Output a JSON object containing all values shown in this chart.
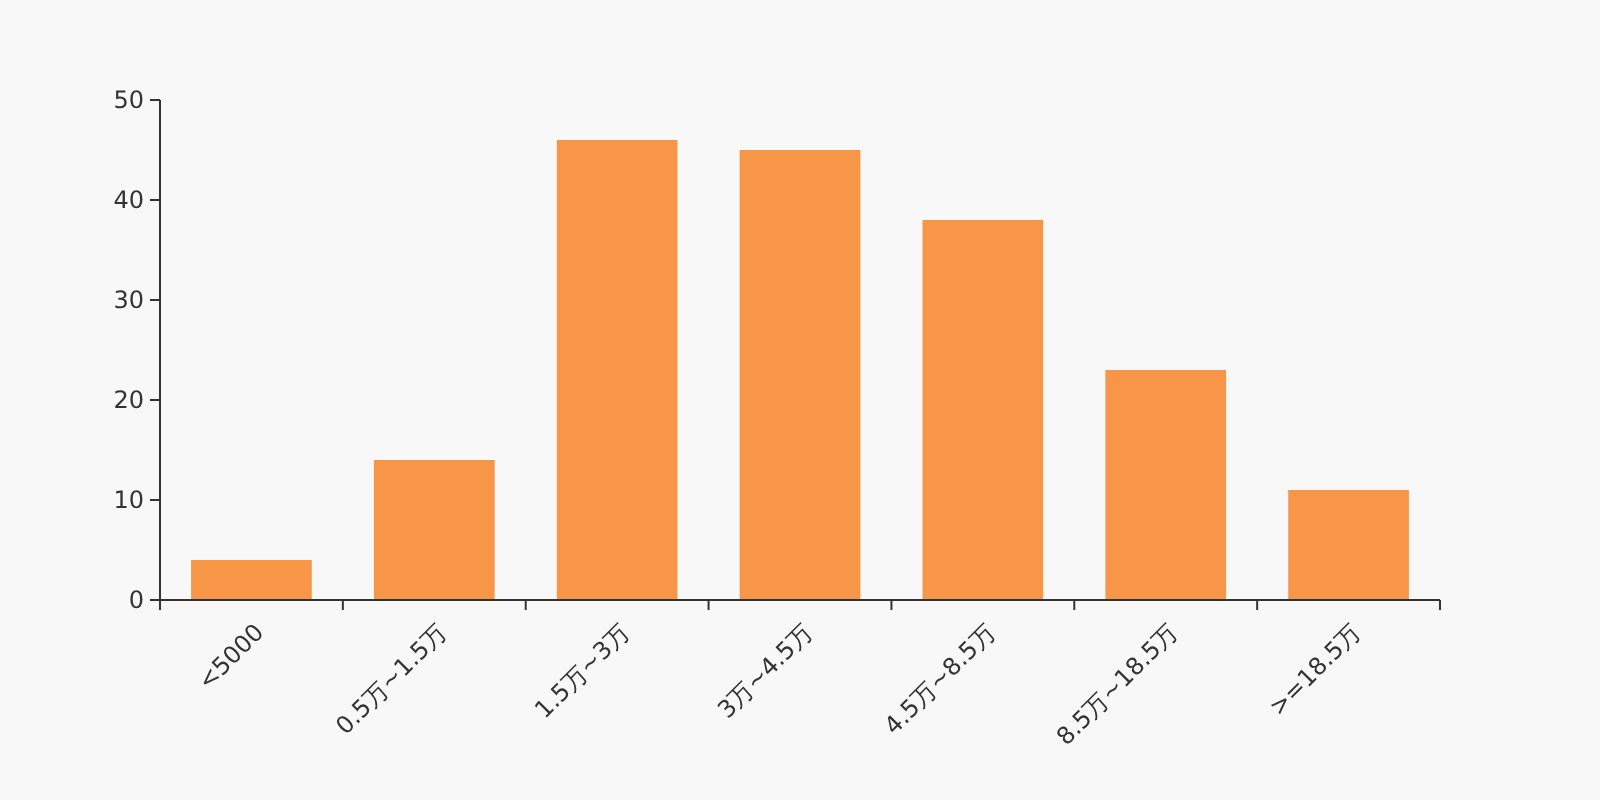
{
  "chart_data": {
    "type": "bar",
    "categories": [
      "<5000",
      "0.5万~1.5万",
      "1.5万~3万",
      "3万~4.5万",
      "4.5万~8.5万",
      "8.5万~18.5万",
      ">=18.5万"
    ],
    "values": [
      4,
      14,
      46,
      45,
      38,
      23,
      11
    ],
    "color": "#f79646",
    "ylim": [
      0,
      50
    ],
    "yticks": [
      0,
      10,
      20,
      30,
      40,
      50
    ],
    "grid": false
  }
}
